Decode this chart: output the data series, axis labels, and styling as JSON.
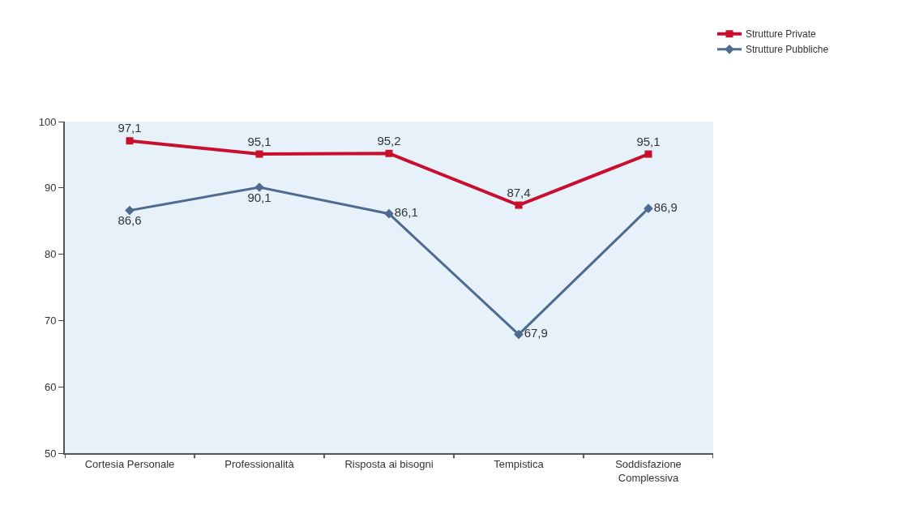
{
  "chart_data": {
    "type": "line",
    "categories": [
      "Cortesia Personale",
      "Professionalità",
      "Risposta ai bisogni",
      "Tempistica",
      "Soddisfazione\nComplessiva"
    ],
    "series": [
      {
        "name": "Strutture Private",
        "color": "#c8102e",
        "marker": "square",
        "values": [
          97.1,
          95.1,
          95.2,
          87.4,
          95.1
        ],
        "value_labels": [
          "97,1",
          "95,1",
          "95,2",
          "87,4",
          "95,1"
        ]
      },
      {
        "name": "Strutture Pubbliche",
        "color": "#4f6a8f",
        "marker": "diamond",
        "values": [
          86.6,
          90.1,
          86.1,
          67.9,
          86.9
        ],
        "value_labels": [
          "86,6",
          "90,1",
          "86,1",
          "67,9",
          "86,9"
        ]
      }
    ],
    "ylim": [
      50,
      100
    ],
    "yticks": [
      50,
      60,
      70,
      80,
      90,
      100
    ],
    "grid": false,
    "legend": "top right"
  }
}
